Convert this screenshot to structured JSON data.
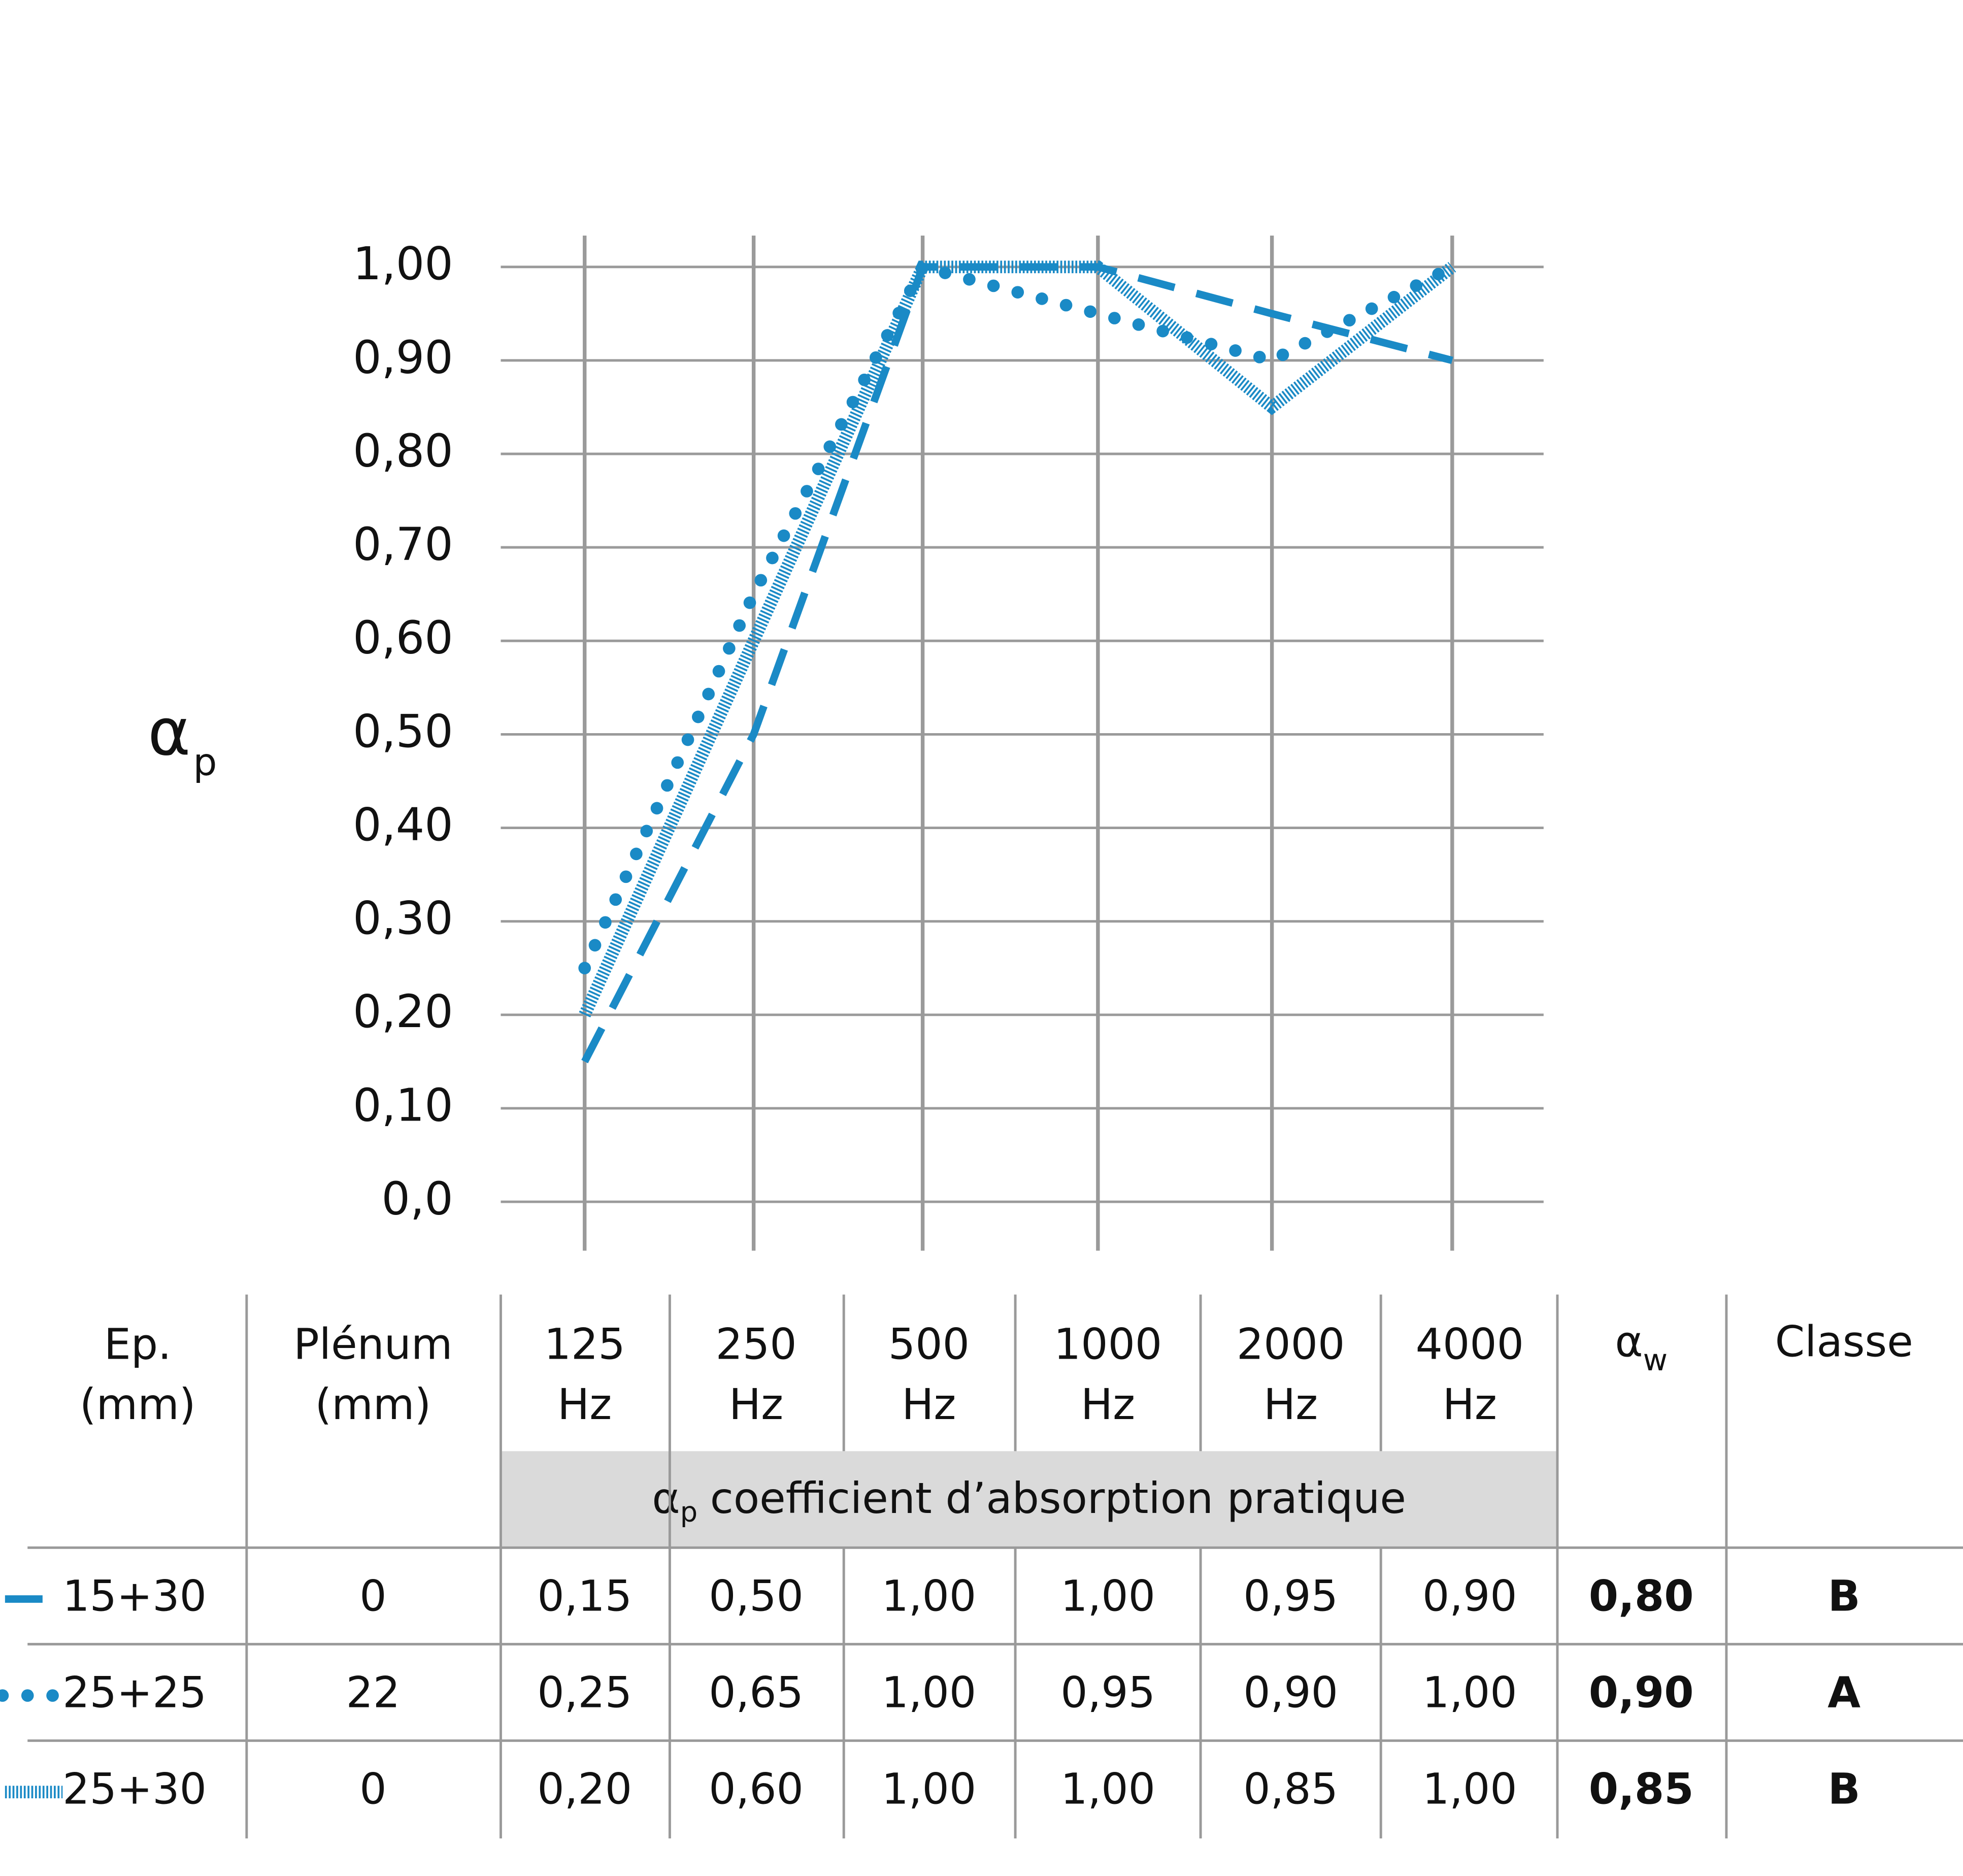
{
  "chart_data": {
    "type": "line",
    "ylabel": {
      "main": "α",
      "sub": "p"
    },
    "categories": [
      "125 Hz",
      "250 Hz",
      "500 Hz",
      "1000 Hz",
      "2000 Hz",
      "4000 Hz"
    ],
    "series": [
      {
        "name": "15+30",
        "color": "#1a8ac6",
        "style": "dashed",
        "values": [
          0.15,
          0.5,
          1.0,
          1.0,
          0.95,
          0.9
        ]
      },
      {
        "name": "25+25",
        "color": "#1a8ac6",
        "style": "dotted",
        "values": [
          0.25,
          0.65,
          1.0,
          0.95,
          0.9,
          1.0
        ]
      },
      {
        "name": "25+30",
        "color": "#1a8ac6",
        "style": "hatched",
        "values": [
          0.2,
          0.6,
          1.0,
          1.0,
          0.85,
          1.0
        ]
      }
    ],
    "ylim": [
      0,
      1
    ],
    "yticks": [
      {
        "value": 0,
        "label": "0,0"
      },
      {
        "value": 0.1,
        "label": "0,10"
      },
      {
        "value": 0.2,
        "label": "0,20"
      },
      {
        "value": 0.3,
        "label": "0,30"
      },
      {
        "value": 0.4,
        "label": "0,40"
      },
      {
        "value": 0.5,
        "label": "0,50"
      },
      {
        "value": 0.6,
        "label": "0,60"
      },
      {
        "value": 0.7,
        "label": "0,70"
      },
      {
        "value": 0.8,
        "label": "0,80"
      },
      {
        "value": 0.9,
        "label": "0,90"
      },
      {
        "value": 1,
        "label": "1,00"
      }
    ],
    "grid": true
  },
  "table": {
    "headers": [
      [
        "Ep.",
        "(mm)"
      ],
      [
        "Plénum",
        "(mm)"
      ],
      [
        "125",
        "Hz"
      ],
      [
        "250",
        "Hz"
      ],
      [
        "500",
        "Hz"
      ],
      [
        "1000",
        "Hz"
      ],
      [
        "2000",
        "Hz"
      ],
      [
        "4000",
        "Hz"
      ]
    ],
    "aw_header": {
      "main": "α",
      "sub": "w"
    },
    "class_header": "Classe",
    "subheader": {
      "main": "α",
      "sub": "p",
      "text": "coefficient d’absorption pratique"
    },
    "rows": [
      [
        "0",
        "0,15",
        "0,50",
        "1,00",
        "1,00",
        "0,95",
        "0,90",
        "0,80",
        "B"
      ],
      [
        "22",
        "0,25",
        "0,65",
        "1,00",
        "0,95",
        "0,90",
        "1,00",
        "0,90",
        "A"
      ],
      [
        "0",
        "0,20",
        "0,60",
        "1,00",
        "1,00",
        "0,85",
        "1,00",
        "0,85",
        "B"
      ]
    ]
  }
}
